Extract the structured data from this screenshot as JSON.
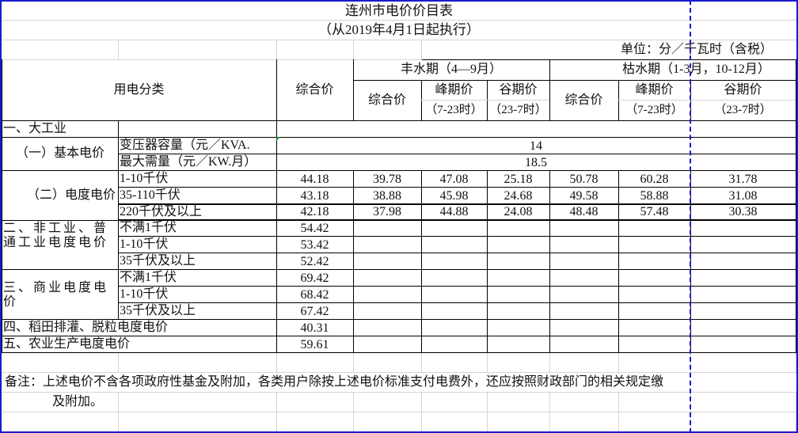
{
  "title": "连州市电价价目表",
  "subtitle": "（从2019年4月1日起执行）",
  "unit": "单位：分／千瓦时（含税）",
  "header": {
    "category": "用电分类",
    "composite": "综合价",
    "wet_season": "丰水期（4—9月）",
    "wet_composite": "综合价",
    "wet_peak": "峰期价",
    "wet_peak_hours": "（7-23时）",
    "wet_valley": "谷期价",
    "wet_valley_hours": "（23-7时）",
    "dry_season": "枯水期（1-3月，10-12月）",
    "dry_composite": "综合价",
    "dry_peak": "峰期价",
    "dry_peak_hours": "（7-23时）",
    "dry_valley": "谷期价",
    "dry_valley_hours": "（23-7时）"
  },
  "large_industry": {
    "label": "一、大工业",
    "basic": {
      "label": "（一）基本电价",
      "items": [
        {
          "label": "变压器容量（元／KVA.",
          "value": "14"
        },
        {
          "label": "最大需量（元／KW.月）",
          "value": "18.5"
        }
      ]
    },
    "energy": {
      "label": "（二）电度电价",
      "items": [
        {
          "label": "1-10千伏",
          "composite": "44.18",
          "wet_composite": "39.78",
          "wet_peak": "47.08",
          "wet_valley": "25.18",
          "dry_composite": "50.78",
          "dry_peak": "60.28",
          "dry_valley": "31.78"
        },
        {
          "label": "35-110千伏",
          "composite": "43.18",
          "wet_composite": "38.88",
          "wet_peak": "45.98",
          "wet_valley": "24.68",
          "dry_composite": "49.58",
          "dry_peak": "58.88",
          "dry_valley": "31.08"
        },
        {
          "label": "220千伏及以上",
          "composite": "42.18",
          "wet_composite": "37.98",
          "wet_peak": "44.88",
          "wet_valley": "24.08",
          "dry_composite": "48.48",
          "dry_peak": "57.48",
          "dry_valley": "30.38"
        }
      ]
    }
  },
  "non_industry": {
    "label": "二、非工业、普通工业电度电价",
    "items": [
      {
        "label": "不满1千伏",
        "composite": "54.42"
      },
      {
        "label": "1-10千伏",
        "composite": "53.42"
      },
      {
        "label": "35千伏及以上",
        "composite": "52.42"
      }
    ]
  },
  "commercial": {
    "label": "三、商业电度电价",
    "items": [
      {
        "label": "不满1千伏",
        "composite": "69.42"
      },
      {
        "label": "1-10千伏",
        "composite": "68.42"
      },
      {
        "label": "35千伏及以上",
        "composite": "67.42"
      }
    ]
  },
  "irrigation": {
    "label": "四、稻田排灌、脱粒电度电价",
    "composite": "40.31"
  },
  "agriculture": {
    "label": "五、农业生产电度电价",
    "composite": "59.61"
  },
  "note": {
    "line1": "备注：上述电价不含各项政府性基金及附加，各类用户除按上述电价标准支付电费外，还应按照财政部门的相关规定缴",
    "line2": "及附加。"
  },
  "colors": {
    "page_border": "#1a1ad0",
    "grid": "#d4d4d4",
    "border": "#000000"
  }
}
